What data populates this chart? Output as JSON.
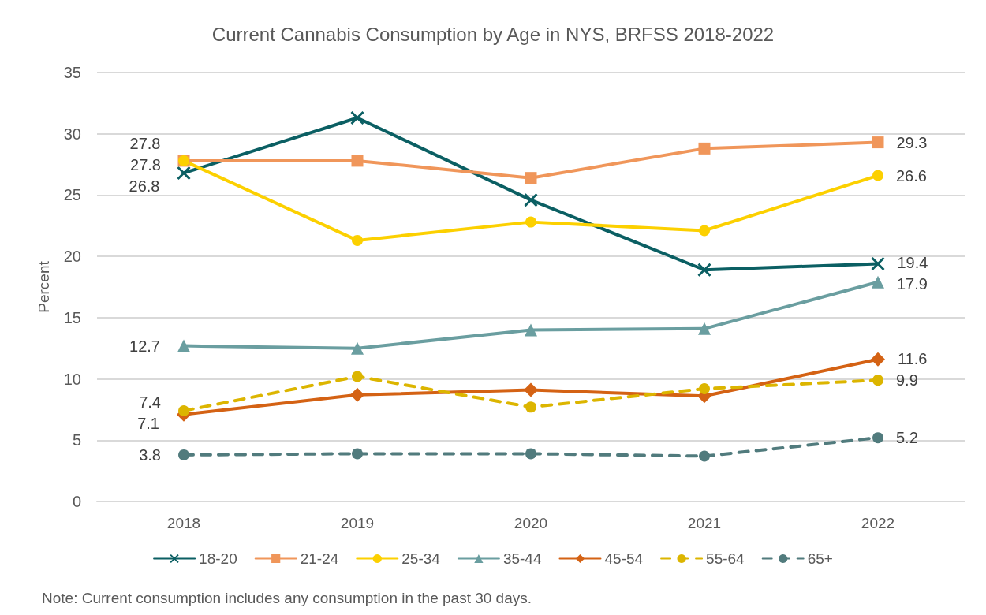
{
  "chart_data": {
    "type": "line",
    "title": "Current Cannabis Consumption by Age in NYS, BRFSS 2018-2022",
    "ylabel": "Percent",
    "categories": [
      "2018",
      "2019",
      "2020",
      "2021",
      "2022"
    ],
    "ylim": [
      0,
      35
    ],
    "yticks": [
      0,
      5,
      10,
      15,
      20,
      25,
      30,
      35
    ],
    "grid": "y",
    "legend": "bottom",
    "annotations": [
      "Note: Current consumption includes any consumption in the past 30 days."
    ],
    "series": [
      {
        "name": "18-20",
        "color": "#0b5f63",
        "marker": "cross",
        "line_style": "solid",
        "values": [
          26.8,
          31.3,
          24.6,
          18.9,
          19.4
        ],
        "value_labels": [
          "26.8",
          null,
          null,
          null,
          "19.4"
        ]
      },
      {
        "name": "21-24",
        "color": "#f0965a",
        "marker": "square",
        "line_style": "solid",
        "values": [
          27.8,
          27.8,
          26.4,
          28.8,
          29.3
        ],
        "value_labels": [
          "27.8",
          null,
          null,
          null,
          "29.3"
        ]
      },
      {
        "name": "25-34",
        "color": "#fcd000",
        "marker": "circle",
        "line_style": "solid",
        "values": [
          27.8,
          21.3,
          22.8,
          22.1,
          26.6
        ],
        "value_labels": [
          "27.8",
          null,
          null,
          null,
          "26.6"
        ]
      },
      {
        "name": "35-44",
        "color": "#6a9ea0",
        "marker": "triangle",
        "line_style": "solid",
        "values": [
          12.7,
          12.5,
          14.0,
          14.1,
          17.9
        ],
        "value_labels": [
          "12.7",
          null,
          null,
          null,
          "17.9"
        ]
      },
      {
        "name": "45-54",
        "color": "#d46214",
        "marker": "diamond",
        "line_style": "solid",
        "values": [
          7.1,
          8.7,
          9.1,
          8.6,
          11.6
        ],
        "value_labels": [
          "7.1",
          null,
          null,
          null,
          "11.6"
        ]
      },
      {
        "name": "55-64",
        "color": "#dcb500",
        "marker": "circle",
        "line_style": "dashed",
        "values": [
          7.4,
          10.2,
          7.7,
          9.2,
          9.9
        ],
        "value_labels": [
          "7.4",
          null,
          null,
          null,
          "9.9"
        ]
      },
      {
        "name": "65+",
        "color": "#517b7d",
        "marker": "circle",
        "line_style": "dashed",
        "values": [
          3.8,
          3.9,
          3.9,
          3.7,
          5.2
        ],
        "value_labels": [
          "3.8",
          null,
          null,
          null,
          "5.2"
        ]
      }
    ]
  }
}
